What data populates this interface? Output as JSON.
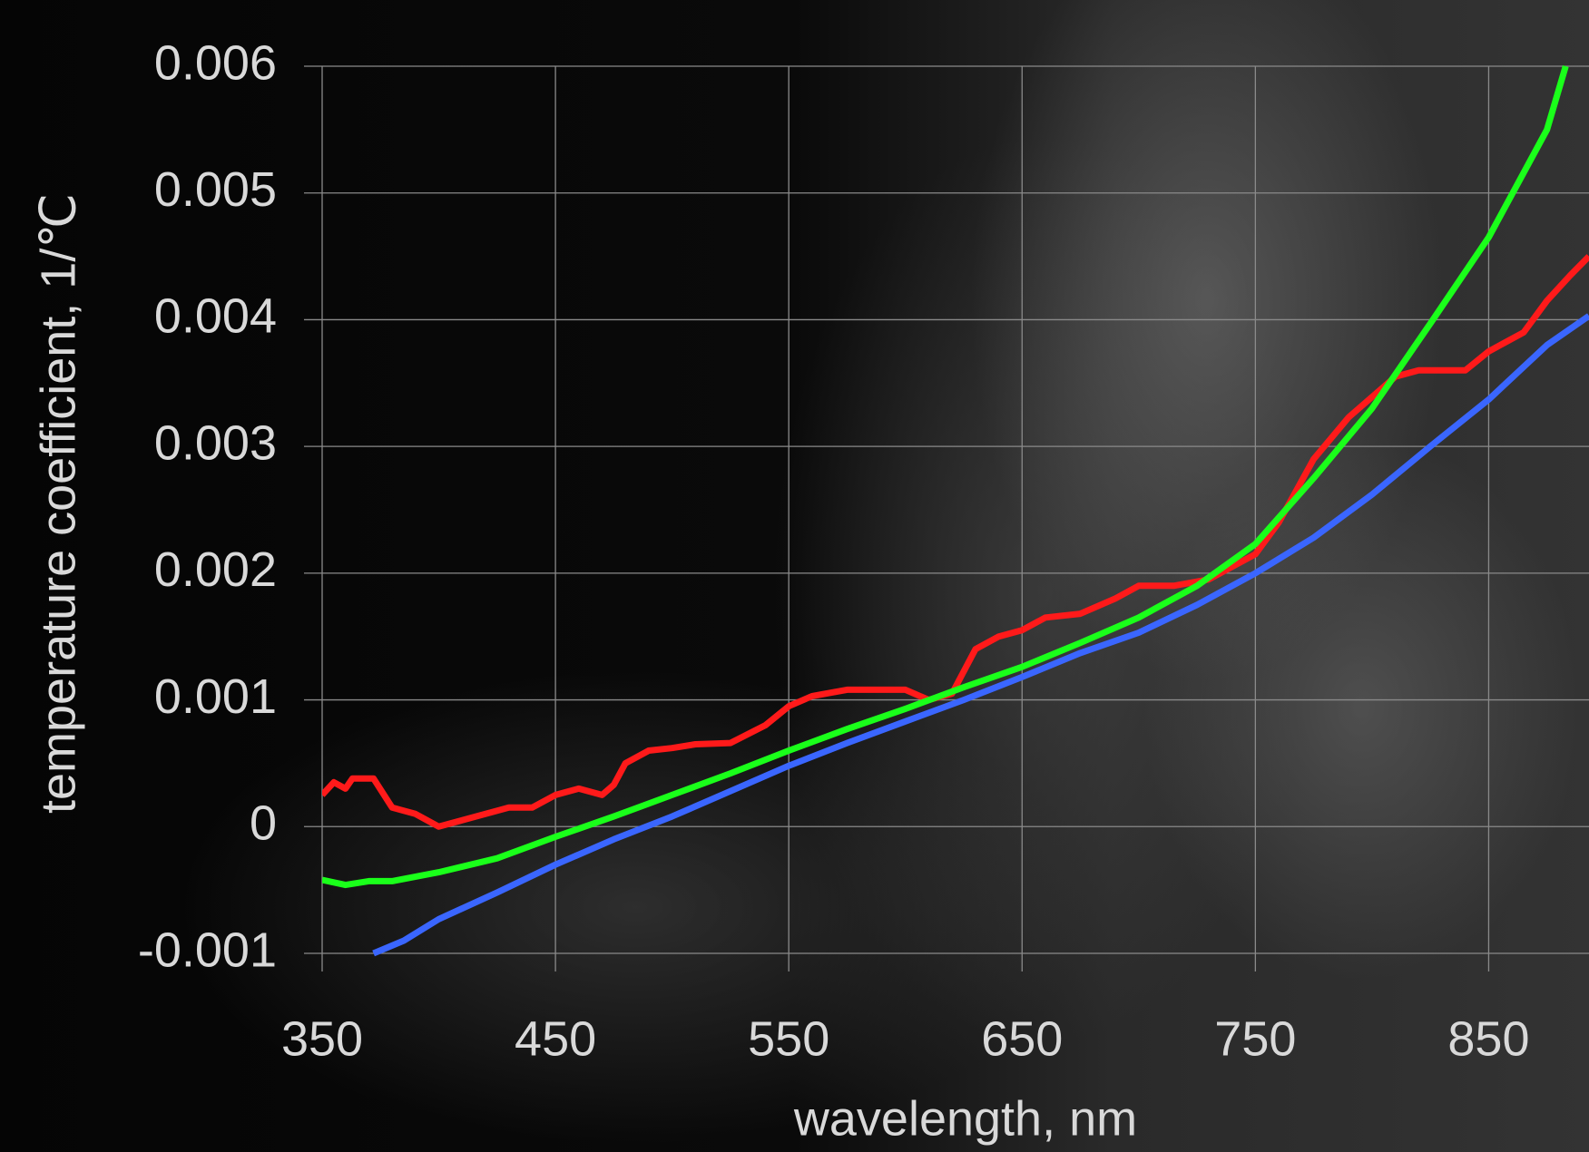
{
  "chart_data": {
    "type": "line",
    "xlabel": "wavelength, nm",
    "ylabel": "temperature coefficient, 1/℃",
    "xlim": [
      350,
      893
    ],
    "ylim": [
      -0.001,
      0.006
    ],
    "xticks": [
      350,
      450,
      550,
      650,
      750,
      850
    ],
    "yticks": [
      -0.001,
      0,
      0.001,
      0.002,
      0.003,
      0.004,
      0.005,
      0.006
    ],
    "grid": true,
    "series": [
      {
        "color": "#ff1a1a",
        "x": [
          350,
          355,
          360,
          363,
          372,
          380,
          390,
          400,
          410,
          420,
          430,
          440,
          450,
          460,
          470,
          475,
          480,
          490,
          500,
          510,
          525,
          540,
          550,
          560,
          575,
          600,
          610,
          620,
          630,
          640,
          650,
          660,
          675,
          690,
          700,
          715,
          730,
          750,
          760,
          775,
          790,
          810,
          820,
          830,
          840,
          850,
          865,
          875,
          885,
          893
        ],
        "values": [
          0.00025,
          0.00035,
          0.0003,
          0.00038,
          0.00038,
          0.00015,
          0.0001,
          0,
          5e-05,
          0.0001,
          0.00015,
          0.00015,
          0.00025,
          0.0003,
          0.00025,
          0.00033,
          0.0005,
          0.0006,
          0.00062,
          0.00065,
          0.00066,
          0.0008,
          0.00095,
          0.00103,
          0.00108,
          0.00108,
          0.001,
          0.00105,
          0.0014,
          0.0015,
          0.00155,
          0.00165,
          0.00168,
          0.0018,
          0.0019,
          0.0019,
          0.00195,
          0.00215,
          0.0024,
          0.0029,
          0.00323,
          0.00355,
          0.0036,
          0.0036,
          0.0036,
          0.00375,
          0.0039,
          0.00415,
          0.00435,
          0.0045
        ]
      },
      {
        "color": "#1aff1a",
        "x": [
          350,
          360,
          370,
          380,
          400,
          425,
          450,
          475,
          500,
          525,
          550,
          575,
          600,
          625,
          650,
          675,
          700,
          725,
          750,
          775,
          800,
          825,
          850,
          875,
          883
        ],
        "values": [
          -0.00042,
          -0.00046,
          -0.00043,
          -0.00043,
          -0.00036,
          -0.00025,
          -8e-05,
          8e-05,
          0.00025,
          0.00042,
          0.0006,
          0.00077,
          0.00093,
          0.0011,
          0.00126,
          0.00145,
          0.00165,
          0.0019,
          0.00223,
          0.00275,
          0.0033,
          0.00397,
          0.00465,
          0.0055,
          0.006
        ]
      },
      {
        "color": "#3a66ff",
        "x": [
          372,
          385,
          400,
          425,
          450,
          475,
          500,
          525,
          550,
          575,
          600,
          625,
          650,
          675,
          700,
          725,
          750,
          775,
          800,
          825,
          850,
          875,
          893
        ],
        "values": [
          -0.001,
          -0.0009,
          -0.00073,
          -0.00052,
          -0.0003,
          -0.0001,
          8e-05,
          0.00028,
          0.00048,
          0.00066,
          0.00083,
          0.001,
          0.00118,
          0.00137,
          0.00153,
          0.00175,
          0.002,
          0.00228,
          0.00262,
          0.003,
          0.00337,
          0.0038,
          0.00403
        ]
      }
    ]
  }
}
